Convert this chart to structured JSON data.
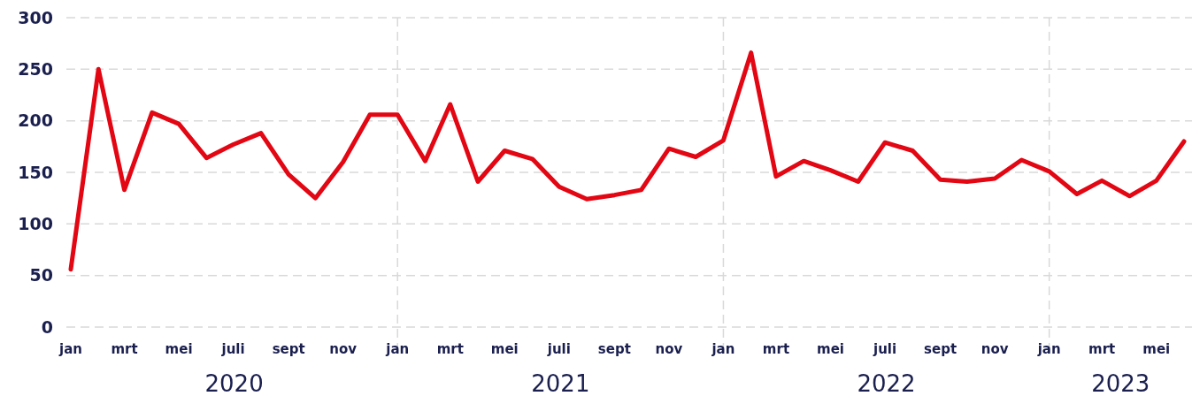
{
  "chart_data": {
    "type": "line",
    "x": [
      "2020-01",
      "2020-02",
      "2020-03",
      "2020-04",
      "2020-05",
      "2020-06",
      "2020-07",
      "2020-08",
      "2020-09",
      "2020-10",
      "2020-11",
      "2020-12",
      "2021-01",
      "2021-02",
      "2021-03",
      "2021-04",
      "2021-05",
      "2021-06",
      "2021-07",
      "2021-08",
      "2021-09",
      "2021-10",
      "2021-11",
      "2021-12",
      "2022-01",
      "2022-02",
      "2022-03",
      "2022-04",
      "2022-05",
      "2022-06",
      "2022-07",
      "2022-08",
      "2022-09",
      "2022-10",
      "2022-11",
      "2022-12",
      "2023-01",
      "2023-02",
      "2023-03",
      "2023-04",
      "2023-05",
      "2023-06"
    ],
    "series": [
      {
        "color": "#e30613",
        "values": [
          56,
          250,
          133,
          208,
          197,
          164,
          177,
          188,
          148,
          125,
          160,
          206,
          206,
          161,
          216,
          141,
          171,
          163,
          136,
          124,
          128,
          133,
          173,
          165,
          181,
          266,
          146,
          161,
          152,
          141,
          179,
          171,
          143,
          141,
          144,
          162,
          151,
          129,
          142,
          127,
          142,
          180
        ]
      }
    ],
    "xlim": [
      "2020-01",
      "2023-06"
    ],
    "xticks": [
      {
        "value": "2020-01",
        "label": "jan"
      },
      {
        "value": "2020-03",
        "label": "mrt"
      },
      {
        "value": "2020-05",
        "label": "mei"
      },
      {
        "value": "2020-07",
        "label": "juli"
      },
      {
        "value": "2020-09",
        "label": "sept"
      },
      {
        "value": "2020-11",
        "label": "nov"
      },
      {
        "value": "2021-01",
        "label": "jan"
      },
      {
        "value": "2021-03",
        "label": "mrt"
      },
      {
        "value": "2021-05",
        "label": "mei"
      },
      {
        "value": "2021-07",
        "label": "juli"
      },
      {
        "value": "2021-09",
        "label": "sept"
      },
      {
        "value": "2021-11",
        "label": "nov"
      },
      {
        "value": "2022-01",
        "label": "jan"
      },
      {
        "value": "2022-03",
        "label": "mrt"
      },
      {
        "value": "2022-05",
        "label": "mei"
      },
      {
        "value": "2022-07",
        "label": "juli"
      },
      {
        "value": "2022-09",
        "label": "sept"
      },
      {
        "value": "2022-11",
        "label": "nov"
      },
      {
        "value": "2023-01",
        "label": "jan"
      },
      {
        "value": "2023-03",
        "label": "mrt"
      },
      {
        "value": "2023-05",
        "label": "mei"
      }
    ],
    "ylim": [
      0,
      300
    ],
    "yticks": [
      0,
      50,
      100,
      150,
      200,
      250,
      300
    ],
    "grid": "y",
    "ref_lines": [
      {
        "axis": "x",
        "value": "2021-01",
        "color": "#d9d9d9",
        "line_style": "dashed"
      },
      {
        "axis": "x",
        "value": "2022-01",
        "color": "#d9d9d9",
        "line_style": "dashed"
      },
      {
        "axis": "x",
        "value": "2023-01",
        "color": "#d9d9d9",
        "line_style": "dashed"
      }
    ],
    "annotations": [
      "2020",
      "2021",
      "2022",
      "2023"
    ],
    "line_style": "solid",
    "marker": "none"
  }
}
